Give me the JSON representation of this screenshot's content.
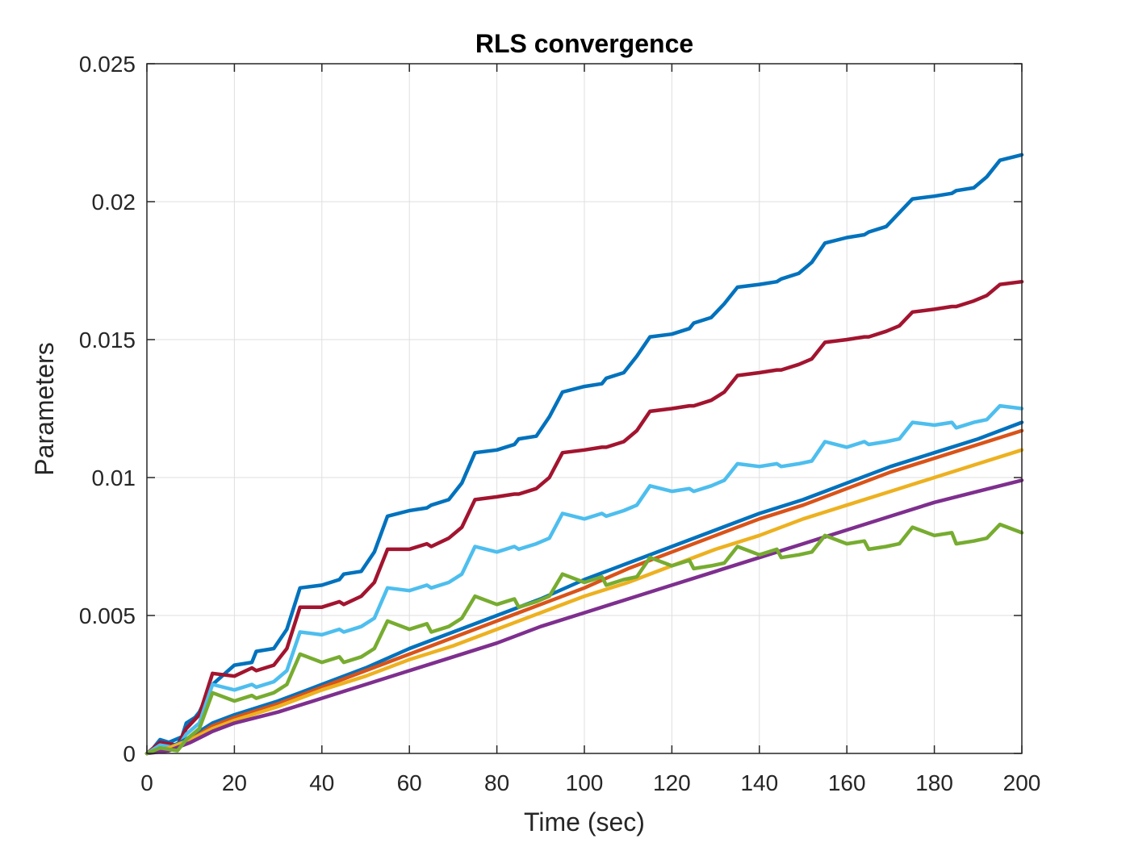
{
  "chart_data": {
    "type": "line",
    "title": "RLS convergence",
    "xlabel": "Time (sec)",
    "ylabel": "Parameters",
    "xlim": [
      0,
      200
    ],
    "ylim": [
      0,
      0.025
    ],
    "xticks": [
      0,
      20,
      40,
      60,
      80,
      100,
      120,
      140,
      160,
      180,
      200
    ],
    "xtick_labels": [
      "0",
      "20",
      "40",
      "60",
      "80",
      "100",
      "120",
      "140",
      "160",
      "180",
      "200"
    ],
    "yticks": [
      0,
      0.005,
      0.01,
      0.015,
      0.02,
      0.025
    ],
    "ytick_labels": [
      "0",
      "0.005",
      "0.01",
      "0.015",
      "0.02",
      "0.025"
    ],
    "grid": true,
    "legend": "none",
    "series": [
      {
        "color": "#0072BD",
        "width": 3,
        "x": [
          0,
          1,
          2,
          3,
          5,
          8,
          9,
          11,
          12,
          15,
          20,
          24,
          25,
          29,
          32,
          35,
          40,
          44,
          45,
          49,
          52,
          55,
          60,
          64,
          65,
          69,
          72,
          75,
          80,
          84,
          85,
          89,
          92,
          95,
          100,
          104,
          105,
          109,
          112,
          115,
          120,
          124,
          125,
          129,
          132,
          135,
          140,
          144,
          145,
          149,
          152,
          155,
          160,
          164,
          165,
          169,
          172,
          175,
          180,
          184,
          185,
          189,
          192,
          195,
          200
        ],
        "y": [
          0.0,
          0.0001,
          0.0003,
          0.0005,
          0.0004,
          0.0006,
          0.0011,
          0.0013,
          0.0015,
          0.0025,
          0.0032,
          0.0033,
          0.0037,
          0.0038,
          0.0045,
          0.006,
          0.0061,
          0.0063,
          0.0065,
          0.0066,
          0.0073,
          0.0086,
          0.0088,
          0.0089,
          0.009,
          0.0092,
          0.0098,
          0.0109,
          0.011,
          0.0112,
          0.0114,
          0.0115,
          0.0122,
          0.0131,
          0.0133,
          0.0134,
          0.0136,
          0.0138,
          0.0144,
          0.0151,
          0.0152,
          0.0154,
          0.0156,
          0.0158,
          0.0163,
          0.0169,
          0.017,
          0.0171,
          0.0172,
          0.0174,
          0.0178,
          0.0185,
          0.0187,
          0.0188,
          0.0189,
          0.0191,
          0.0196,
          0.0201,
          0.0202,
          0.0203,
          0.0204,
          0.0205,
          0.0209,
          0.0215,
          0.0217
        ]
      },
      {
        "color": "#A2142F",
        "width": 3,
        "x": [
          0,
          3,
          7,
          9,
          12,
          15,
          20,
          24,
          25,
          29,
          32,
          35,
          40,
          44,
          45,
          49,
          52,
          55,
          60,
          64,
          65,
          69,
          72,
          75,
          80,
          84,
          85,
          89,
          92,
          95,
          100,
          104,
          105,
          109,
          112,
          115,
          120,
          124,
          125,
          129,
          132,
          135,
          140,
          144,
          145,
          149,
          152,
          155,
          160,
          164,
          165,
          169,
          172,
          175,
          180,
          184,
          185,
          189,
          192,
          195,
          200
        ],
        "y": [
          0.0,
          0.0004,
          0.0003,
          0.0009,
          0.0014,
          0.0029,
          0.0028,
          0.0031,
          0.003,
          0.0032,
          0.0038,
          0.0053,
          0.0053,
          0.0055,
          0.0054,
          0.0057,
          0.0062,
          0.0074,
          0.0074,
          0.0076,
          0.0075,
          0.0078,
          0.0082,
          0.0092,
          0.0093,
          0.0094,
          0.0094,
          0.0096,
          0.01,
          0.0109,
          0.011,
          0.0111,
          0.0111,
          0.0113,
          0.0117,
          0.0124,
          0.0125,
          0.0126,
          0.0126,
          0.0128,
          0.0131,
          0.0137,
          0.0138,
          0.0139,
          0.0139,
          0.0141,
          0.0143,
          0.0149,
          0.015,
          0.0151,
          0.0151,
          0.0153,
          0.0155,
          0.016,
          0.0161,
          0.0162,
          0.0162,
          0.0164,
          0.0166,
          0.017,
          0.0171
        ]
      },
      {
        "color": "#4DBEEE",
        "width": 3,
        "x": [
          0,
          3,
          7,
          9,
          12,
          15,
          20,
          24,
          25,
          29,
          32,
          35,
          40,
          44,
          45,
          49,
          52,
          55,
          60,
          64,
          65,
          69,
          72,
          75,
          80,
          84,
          85,
          89,
          92,
          95,
          100,
          104,
          105,
          109,
          112,
          115,
          120,
          124,
          125,
          129,
          132,
          135,
          140,
          144,
          145,
          149,
          152,
          155,
          160,
          164,
          165,
          169,
          172,
          175,
          180,
          184,
          185,
          189,
          192,
          195,
          200
        ],
        "y": [
          0.0,
          0.0003,
          0.0002,
          0.0007,
          0.0011,
          0.0025,
          0.0023,
          0.0025,
          0.0024,
          0.0026,
          0.003,
          0.0044,
          0.0043,
          0.0045,
          0.0044,
          0.0046,
          0.0049,
          0.006,
          0.0059,
          0.0061,
          0.006,
          0.0062,
          0.0065,
          0.0075,
          0.0073,
          0.0075,
          0.0074,
          0.0076,
          0.0078,
          0.0087,
          0.0085,
          0.0087,
          0.0086,
          0.0088,
          0.009,
          0.0097,
          0.0095,
          0.0096,
          0.0095,
          0.0097,
          0.0099,
          0.0105,
          0.0104,
          0.0105,
          0.0104,
          0.0105,
          0.0106,
          0.0113,
          0.0111,
          0.0113,
          0.0112,
          0.0113,
          0.0114,
          0.012,
          0.0119,
          0.012,
          0.0118,
          0.012,
          0.0121,
          0.0126,
          0.0125
        ]
      },
      {
        "color": "#0072BD",
        "width": 3,
        "x": [
          0,
          5,
          10,
          15,
          20,
          30,
          40,
          50,
          60,
          70,
          80,
          90,
          100,
          110,
          120,
          130,
          140,
          150,
          160,
          170,
          180,
          190,
          200
        ],
        "y": [
          0.0,
          0.0002,
          0.0006,
          0.0011,
          0.0014,
          0.0019,
          0.0025,
          0.0031,
          0.0038,
          0.0044,
          0.005,
          0.0056,
          0.0063,
          0.0069,
          0.0075,
          0.0081,
          0.0087,
          0.0092,
          0.0098,
          0.0104,
          0.0109,
          0.0114,
          0.012
        ]
      },
      {
        "color": "#D95319",
        "width": 3,
        "x": [
          0,
          5,
          10,
          15,
          20,
          30,
          40,
          50,
          60,
          70,
          80,
          90,
          100,
          110,
          120,
          130,
          140,
          150,
          160,
          170,
          180,
          190,
          200
        ],
        "y": [
          0.0,
          0.0002,
          0.0005,
          0.001,
          0.0013,
          0.0018,
          0.0024,
          0.003,
          0.0036,
          0.0042,
          0.0048,
          0.0054,
          0.006,
          0.0067,
          0.0073,
          0.0079,
          0.0085,
          0.009,
          0.0096,
          0.0102,
          0.0107,
          0.0112,
          0.0117
        ]
      },
      {
        "color": "#EDB120",
        "width": 3,
        "x": [
          0,
          5,
          10,
          15,
          20,
          30,
          40,
          50,
          60,
          70,
          80,
          90,
          100,
          110,
          120,
          130,
          140,
          150,
          160,
          170,
          180,
          190,
          200
        ],
        "y": [
          0.0,
          0.0002,
          0.0005,
          0.0009,
          0.0012,
          0.0017,
          0.0023,
          0.0028,
          0.0034,
          0.0039,
          0.0045,
          0.0051,
          0.0057,
          0.0062,
          0.0068,
          0.0074,
          0.0079,
          0.0085,
          0.009,
          0.0095,
          0.01,
          0.0105,
          0.011
        ]
      },
      {
        "color": "#7E2F8E",
        "width": 3,
        "x": [
          0,
          5,
          10,
          15,
          20,
          30,
          40,
          50,
          60,
          70,
          80,
          90,
          100,
          110,
          120,
          130,
          140,
          150,
          160,
          170,
          180,
          190,
          200
        ],
        "y": [
          0.0,
          0.0001,
          0.0004,
          0.0008,
          0.0011,
          0.0015,
          0.002,
          0.0025,
          0.003,
          0.0035,
          0.004,
          0.0046,
          0.0051,
          0.0056,
          0.0061,
          0.0066,
          0.0071,
          0.0076,
          0.0081,
          0.0086,
          0.0091,
          0.0095,
          0.0099
        ]
      },
      {
        "color": "#77AC30",
        "width": 3,
        "x": [
          0,
          3,
          7,
          9,
          12,
          15,
          20,
          24,
          25,
          29,
          32,
          35,
          40,
          44,
          45,
          49,
          52,
          55,
          60,
          64,
          65,
          69,
          72,
          75,
          80,
          84,
          85,
          89,
          92,
          95,
          100,
          104,
          105,
          109,
          112,
          115,
          120,
          124,
          125,
          129,
          132,
          135,
          140,
          144,
          145,
          149,
          152,
          155,
          160,
          164,
          165,
          169,
          172,
          175,
          180,
          184,
          185,
          189,
          192,
          195,
          200
        ],
        "y": [
          0.0,
          0.0002,
          0.0001,
          0.0005,
          0.0009,
          0.0022,
          0.0019,
          0.0021,
          0.002,
          0.0022,
          0.0025,
          0.0036,
          0.0033,
          0.0035,
          0.0033,
          0.0035,
          0.0038,
          0.0048,
          0.0045,
          0.0047,
          0.0044,
          0.0046,
          0.0049,
          0.0057,
          0.0054,
          0.0056,
          0.0053,
          0.0055,
          0.0057,
          0.0065,
          0.0062,
          0.0064,
          0.0061,
          0.0063,
          0.0064,
          0.0071,
          0.0068,
          0.007,
          0.0067,
          0.0068,
          0.0069,
          0.0075,
          0.0072,
          0.0074,
          0.0071,
          0.0072,
          0.0073,
          0.0079,
          0.0076,
          0.0077,
          0.0074,
          0.0075,
          0.0076,
          0.0082,
          0.0079,
          0.008,
          0.0076,
          0.0077,
          0.0078,
          0.0083,
          0.008
        ]
      }
    ]
  }
}
